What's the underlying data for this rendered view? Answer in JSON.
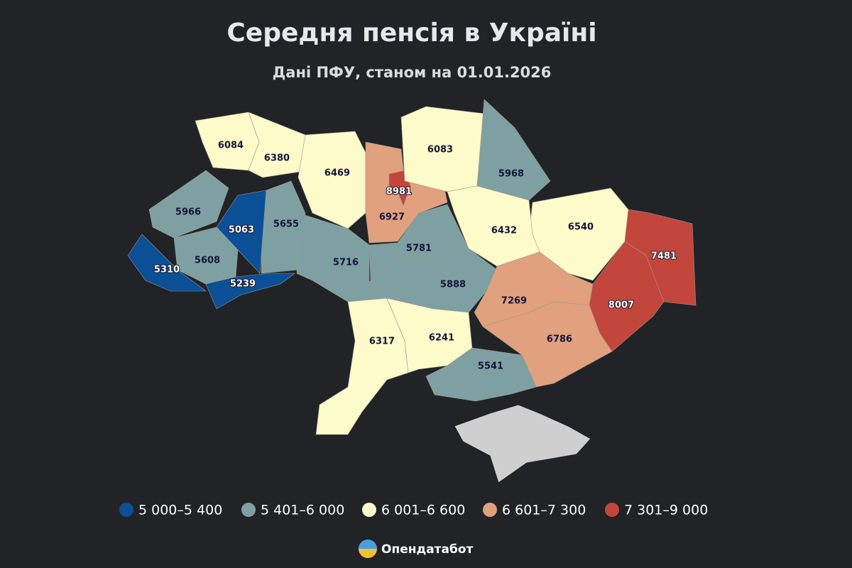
{
  "title": "Середня пенсія в Україні",
  "subtitle": "Дані ПФУ, станом на 01.01.2026",
  "legend": [
    {
      "min": 5000,
      "max": 5400,
      "label": "5 000–5 400",
      "color": "#0b4f96"
    },
    {
      "min": 5401,
      "max": 6000,
      "label": "5 401–6 000",
      "color": "#7fa0a2"
    },
    {
      "min": 6001,
      "max": 6600,
      "label": "6 001–6 600",
      "color": "#fdfbc9"
    },
    {
      "min": 6601,
      "max": 7300,
      "label": "6 601–7 300",
      "color": "#e1a07e"
    },
    {
      "min": 7301,
      "max": 9000,
      "label": "7 301–9 000",
      "color": "#c3463c"
    }
  ],
  "regions": [
    {
      "value": 6084
    },
    {
      "value": 6380
    },
    {
      "value": 6469
    },
    {
      "value": 6927
    },
    {
      "value": 8981
    },
    {
      "value": 6083
    },
    {
      "value": 5968
    },
    {
      "value": 6540
    },
    {
      "value": 6432
    },
    {
      "value": 5966
    },
    {
      "value": 5655
    },
    {
      "value": 5063
    },
    {
      "value": 5608
    },
    {
      "value": 5310
    },
    {
      "value": 5239
    },
    {
      "value": 5716
    },
    {
      "value": 5781
    },
    {
      "value": 5888
    },
    {
      "value": 7269
    },
    {
      "value": 8007
    },
    {
      "value": 7481
    },
    {
      "value": 6786
    },
    {
      "value": 6317
    },
    {
      "value": 6241
    },
    {
      "value": 5541
    }
  ],
  "brand": "Опендатабот"
}
